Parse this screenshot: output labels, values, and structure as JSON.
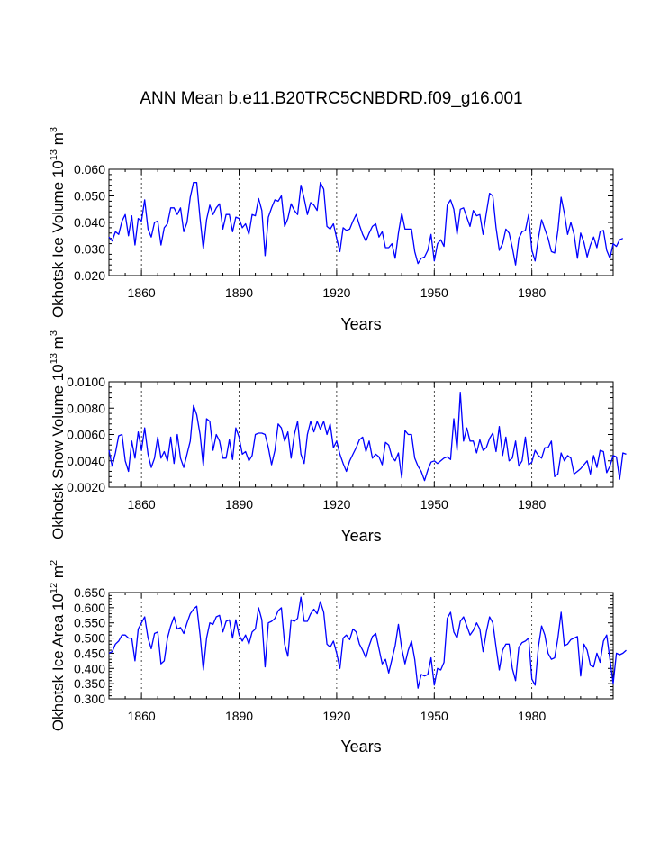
{
  "figure": {
    "title": "ANN Mean b.e11.B20TRC5CNBDRD.f09_g16.001",
    "line_color": "#0000ff",
    "grid_color": "#000000"
  },
  "chart_data": [
    {
      "type": "line",
      "name": "ice-volume",
      "title": "ANN Mean b.e11.B20TRC5CNBDRD.f09_g16.001",
      "ylabel_main": "Okhotsk Ice Volume 10",
      "ylabel_exp": "13",
      "ylabel_unit": " m",
      "ylabel_unit_exp": "3",
      "xlabel": "Years",
      "xlim": [
        1850,
        2005
      ],
      "ylim": [
        0.02,
        0.06
      ],
      "xticks": [
        1860,
        1890,
        1920,
        1950,
        1980
      ],
      "xtick_labels": [
        "1860",
        "1890",
        "1920",
        "1950",
        "1980"
      ],
      "yticks": [
        0.02,
        0.03,
        0.04,
        0.05,
        0.06
      ],
      "ytick_labels": [
        "0.020",
        "0.030",
        "0.040",
        "0.050",
        "0.060"
      ],
      "grid": "dashed vertical at x ticks",
      "x_start": 1850,
      "values": [
        0.0345,
        0.033,
        0.0365,
        0.0355,
        0.0405,
        0.043,
        0.035,
        0.0425,
        0.0315,
        0.0415,
        0.0405,
        0.0485,
        0.0375,
        0.0345,
        0.04,
        0.0405,
        0.0315,
        0.038,
        0.0395,
        0.0455,
        0.0455,
        0.043,
        0.0455,
        0.0365,
        0.04,
        0.0495,
        0.055,
        0.055,
        0.0415,
        0.03,
        0.041,
        0.0465,
        0.043,
        0.0455,
        0.047,
        0.0375,
        0.043,
        0.043,
        0.0365,
        0.042,
        0.0415,
        0.038,
        0.0395,
        0.0355,
        0.043,
        0.0425,
        0.049,
        0.0445,
        0.0275,
        0.042,
        0.0455,
        0.0485,
        0.048,
        0.05,
        0.0385,
        0.0415,
        0.047,
        0.0445,
        0.043,
        0.054,
        0.049,
        0.043,
        0.0475,
        0.0465,
        0.0445,
        0.055,
        0.0525,
        0.0385,
        0.0375,
        0.0395,
        0.034,
        0.029,
        0.038,
        0.037,
        0.0375,
        0.0405,
        0.043,
        0.039,
        0.0355,
        0.033,
        0.036,
        0.0385,
        0.0395,
        0.0345,
        0.0365,
        0.0305,
        0.0305,
        0.032,
        0.0265,
        0.036,
        0.0435,
        0.0375,
        0.0375,
        0.0375,
        0.029,
        0.0245,
        0.0265,
        0.027,
        0.0295,
        0.0355,
        0.0255,
        0.032,
        0.0335,
        0.031,
        0.0465,
        0.0485,
        0.045,
        0.0355,
        0.045,
        0.0455,
        0.042,
        0.0385,
        0.0445,
        0.0425,
        0.043,
        0.0355,
        0.0435,
        0.051,
        0.05,
        0.038,
        0.0295,
        0.032,
        0.0375,
        0.036,
        0.0305,
        0.024,
        0.034,
        0.0365,
        0.037,
        0.043,
        0.0295,
        0.0255,
        0.034,
        0.041,
        0.0375,
        0.034,
        0.029,
        0.0285,
        0.037,
        0.0495,
        0.0435,
        0.0355,
        0.04,
        0.0355,
        0.0265,
        0.036,
        0.0325,
        0.027,
        0.0315,
        0.0345,
        0.0305,
        0.0365,
        0.037,
        0.0295,
        0.0265,
        0.032,
        0.031,
        0.0335,
        0.034
      ]
    },
    {
      "type": "line",
      "name": "snow-volume",
      "ylabel_main": "Okhotsk Snow Volume 10",
      "ylabel_exp": "13",
      "ylabel_unit": " m",
      "ylabel_unit_exp": "3",
      "xlabel": "Years",
      "xlim": [
        1850,
        2005
      ],
      "ylim": [
        0.002,
        0.01
      ],
      "xticks": [
        1860,
        1890,
        1920,
        1950,
        1980
      ],
      "xtick_labels": [
        "1860",
        "1890",
        "1920",
        "1950",
        "1980"
      ],
      "yticks": [
        0.002,
        0.004,
        0.006,
        0.008,
        0.01
      ],
      "ytick_labels": [
        "0.0020",
        "0.0040",
        "0.0060",
        "0.0080",
        "0.0100"
      ],
      "grid": "dashed vertical at x ticks",
      "x_start": 1850,
      "values": [
        0.0048,
        0.0036,
        0.0046,
        0.0059,
        0.006,
        0.004,
        0.0032,
        0.0055,
        0.0042,
        0.0062,
        0.0048,
        0.0065,
        0.0045,
        0.0035,
        0.0042,
        0.0058,
        0.0042,
        0.0047,
        0.004,
        0.0058,
        0.0038,
        0.006,
        0.0042,
        0.0035,
        0.0045,
        0.0055,
        0.0082,
        0.0075,
        0.006,
        0.0036,
        0.0072,
        0.007,
        0.0048,
        0.006,
        0.0055,
        0.0042,
        0.0042,
        0.0056,
        0.0041,
        0.0065,
        0.0058,
        0.0045,
        0.0047,
        0.004,
        0.0044,
        0.006,
        0.0061,
        0.0061,
        0.006,
        0.005,
        0.0037,
        0.0048,
        0.0068,
        0.0065,
        0.0055,
        0.0062,
        0.0042,
        0.006,
        0.007,
        0.0045,
        0.0038,
        0.006,
        0.007,
        0.0062,
        0.007,
        0.0064,
        0.007,
        0.006,
        0.0068,
        0.005,
        0.0055,
        0.0045,
        0.0038,
        0.0032,
        0.004,
        0.0045,
        0.005,
        0.0056,
        0.0058,
        0.0047,
        0.0055,
        0.0042,
        0.0045,
        0.0043,
        0.0037,
        0.0054,
        0.0052,
        0.0043,
        0.004,
        0.0046,
        0.0027,
        0.0063,
        0.006,
        0.006,
        0.0042,
        0.0036,
        0.0032,
        0.0025,
        0.0033,
        0.0039,
        0.004,
        0.0038,
        0.004,
        0.0042,
        0.0043,
        0.0041,
        0.0072,
        0.0048,
        0.0092,
        0.0055,
        0.0065,
        0.0055,
        0.0055,
        0.0046,
        0.0056,
        0.0048,
        0.005,
        0.0057,
        0.0061,
        0.0047,
        0.0066,
        0.0044,
        0.0058,
        0.004,
        0.0042,
        0.0055,
        0.0036,
        0.004,
        0.0058,
        0.0037,
        0.0039,
        0.0048,
        0.0044,
        0.0042,
        0.005,
        0.005,
        0.0055,
        0.0028,
        0.003,
        0.0046,
        0.004,
        0.0044,
        0.0042,
        0.003,
        0.0032,
        0.0034,
        0.0037,
        0.004,
        0.003,
        0.0044,
        0.0035,
        0.0048,
        0.0047,
        0.0031,
        0.0036,
        0.0044,
        0.0043,
        0.0026,
        0.0046,
        0.0045
      ]
    },
    {
      "type": "line",
      "name": "ice-area",
      "ylabel_main": "Okhotsk Ice Area 10",
      "ylabel_exp": "12",
      "ylabel_unit": " m",
      "ylabel_unit_exp": "2",
      "xlabel": "Years",
      "xlim": [
        1850,
        2005
      ],
      "ylim": [
        0.3,
        0.65
      ],
      "xticks": [
        1860,
        1890,
        1920,
        1950,
        1980
      ],
      "xtick_labels": [
        "1860",
        "1890",
        "1920",
        "1950",
        "1980"
      ],
      "yticks": [
        0.3,
        0.35,
        0.4,
        0.45,
        0.5,
        0.55,
        0.6,
        0.65
      ],
      "ytick_labels": [
        "0.300",
        "0.350",
        "0.400",
        "0.450",
        "0.500",
        "0.550",
        "0.600",
        "0.650"
      ],
      "grid": "dashed vertical at x ticks",
      "x_start": 1850,
      "values": [
        0.45,
        0.455,
        0.48,
        0.49,
        0.51,
        0.51,
        0.5,
        0.5,
        0.425,
        0.53,
        0.55,
        0.57,
        0.5,
        0.465,
        0.515,
        0.52,
        0.415,
        0.425,
        0.5,
        0.54,
        0.57,
        0.53,
        0.535,
        0.515,
        0.55,
        0.58,
        0.595,
        0.605,
        0.51,
        0.395,
        0.5,
        0.55,
        0.545,
        0.57,
        0.575,
        0.52,
        0.555,
        0.56,
        0.5,
        0.56,
        0.51,
        0.49,
        0.51,
        0.48,
        0.52,
        0.53,
        0.6,
        0.56,
        0.405,
        0.55,
        0.555,
        0.565,
        0.59,
        0.6,
        0.48,
        0.44,
        0.56,
        0.555,
        0.565,
        0.635,
        0.555,
        0.555,
        0.58,
        0.595,
        0.58,
        0.62,
        0.585,
        0.48,
        0.47,
        0.49,
        0.45,
        0.4,
        0.5,
        0.51,
        0.495,
        0.53,
        0.52,
        0.48,
        0.46,
        0.435,
        0.475,
        0.505,
        0.515,
        0.465,
        0.415,
        0.43,
        0.385,
        0.43,
        0.475,
        0.545,
        0.465,
        0.415,
        0.46,
        0.49,
        0.43,
        0.335,
        0.38,
        0.375,
        0.38,
        0.435,
        0.345,
        0.4,
        0.395,
        0.42,
        0.565,
        0.585,
        0.52,
        0.5,
        0.555,
        0.57,
        0.54,
        0.51,
        0.525,
        0.55,
        0.53,
        0.455,
        0.52,
        0.57,
        0.55,
        0.47,
        0.395,
        0.46,
        0.48,
        0.48,
        0.4,
        0.36,
        0.47,
        0.485,
        0.49,
        0.5,
        0.365,
        0.345,
        0.47,
        0.54,
        0.51,
        0.45,
        0.43,
        0.435,
        0.5,
        0.585,
        0.475,
        0.48,
        0.495,
        0.5,
        0.505,
        0.375,
        0.48,
        0.46,
        0.41,
        0.405,
        0.45,
        0.42,
        0.49,
        0.51,
        0.43,
        0.35,
        0.45,
        0.445,
        0.45,
        0.46
      ]
    }
  ]
}
